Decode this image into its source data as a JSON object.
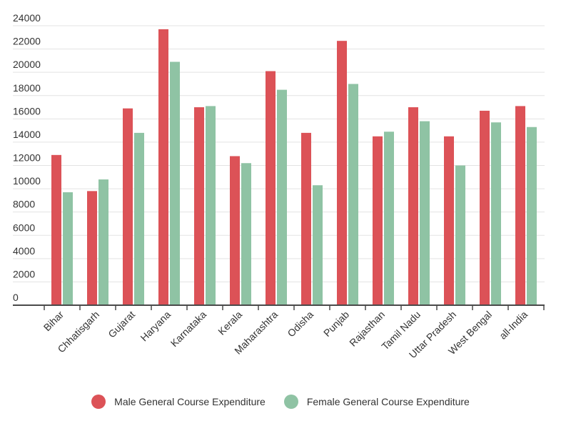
{
  "chart_data": {
    "type": "bar",
    "categories": [
      "Bihar",
      "Chhatisgarh",
      "Gujarat",
      "Haryana",
      "Karnataka",
      "Kerala",
      "Maharashtra",
      "Odisha",
      "Punjab",
      "Rajasthan",
      "Tamil Nadu",
      "Uttar Pradesh",
      "West Bengal",
      "all-India"
    ],
    "series": [
      {
        "name": "Male General Course Expenditure",
        "color": "#dc5257",
        "values": [
          12900,
          9800,
          16900,
          23700,
          17000,
          12800,
          20100,
          14800,
          22700,
          14500,
          17000,
          14500,
          16700,
          17100
        ]
      },
      {
        "name": "Female General Course Expenditure",
        "color": "#8fc3a4",
        "values": [
          9700,
          10800,
          14800,
          20900,
          17100,
          12200,
          18500,
          10300,
          19000,
          14900,
          15800,
          12000,
          15700,
          15300
        ]
      }
    ],
    "ylim": [
      0,
      24000
    ],
    "yticks": [
      0,
      2000,
      4000,
      6000,
      8000,
      10000,
      12000,
      14000,
      16000,
      18000,
      20000,
      22000,
      24000
    ],
    "grid": true,
    "legend_position": "bottom"
  }
}
